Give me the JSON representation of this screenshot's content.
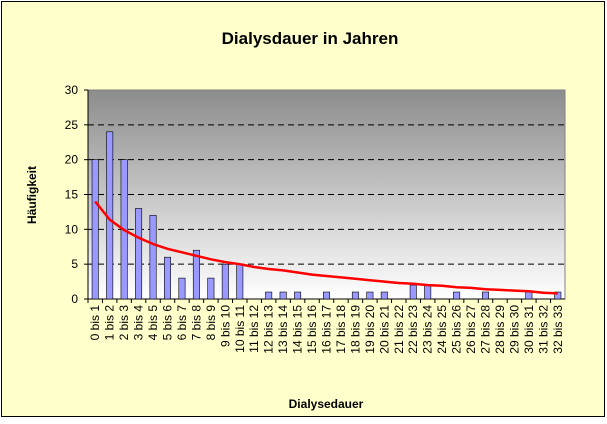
{
  "chart_data": {
    "type": "bar",
    "title": "Dialysdauer in Jahren",
    "xlabel": "Dialysedauer",
    "ylabel": "Häufigkeit",
    "categories": [
      "0 bis 1",
      "1 bis 2",
      "2 bis 3",
      "3 bis 4",
      "4 bis 5",
      "5 bis 6",
      "6 bis 7",
      "7 bis 8",
      "8 bis 9",
      "9 bis 10",
      "10 bis 11",
      "11 bis 12",
      "12 bis 13",
      "13 bis 14",
      "14 bis 15",
      "15 bis 16",
      "16 bis 17",
      "17 bis 18",
      "18 bis 19",
      "19 bis 20",
      "20 bis 21",
      "21 bis 22",
      "22 bis 23",
      "23 bis 24",
      "24 bis 25",
      "25 bis 26",
      "26 bis 27",
      "27 bis 28",
      "28 bis 29",
      "29 bis 30",
      "30 bis 31",
      "31 bis 32",
      "32 bis 33"
    ],
    "values": [
      20,
      24,
      20,
      13,
      12,
      6,
      3,
      7,
      3,
      5,
      5,
      0,
      1,
      1,
      1,
      0,
      1,
      0,
      1,
      1,
      1,
      0,
      2,
      2,
      0,
      1,
      0,
      1,
      0,
      0,
      1,
      0,
      1
    ],
    "color": "#9999ff",
    "trendline": {
      "color": "#ff0000",
      "values": [
        14,
        11.4,
        9.9,
        8.8,
        7.9,
        7.2,
        6.7,
        6.2,
        5.7,
        5.3,
        5.0,
        4.6,
        4.3,
        4.1,
        3.8,
        3.5,
        3.3,
        3.1,
        2.9,
        2.7,
        2.5,
        2.3,
        2.2,
        2.0,
        1.9,
        1.7,
        1.6,
        1.4,
        1.3,
        1.2,
        1.1,
        0.9,
        0.8
      ]
    },
    "ylim": [
      0,
      30
    ],
    "yticks": [
      0,
      5,
      10,
      15,
      20,
      25,
      30
    ],
    "grid": true
  }
}
